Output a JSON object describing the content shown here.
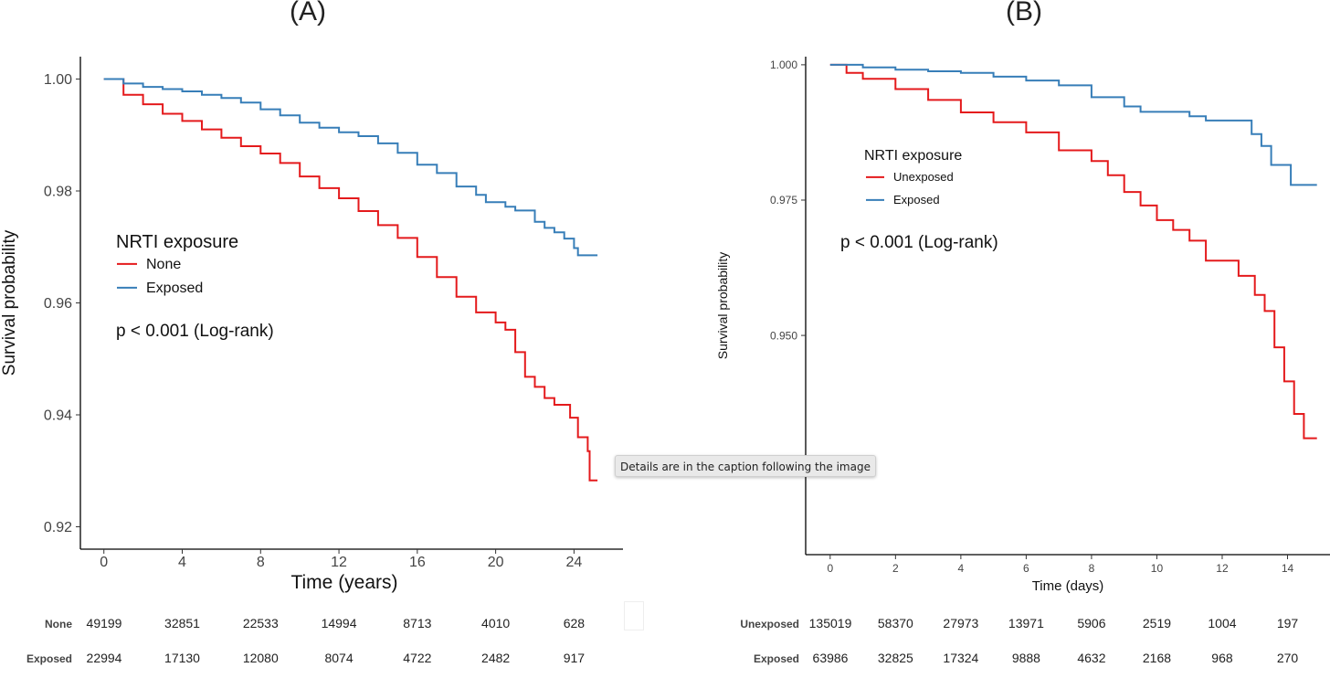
{
  "tooltip": "Details are in the caption following the image",
  "chart_data": [
    {
      "type": "line",
      "title": "(A)",
      "xlabel": "Time (years)",
      "ylabel": "Survival probability",
      "xlim": [
        -1.2,
        26.5
      ],
      "ylim": [
        0.916,
        1.004
      ],
      "xticks": [
        0,
        4,
        8,
        12,
        16,
        20,
        24
      ],
      "yticks": [
        0.92,
        0.94,
        0.96,
        0.98,
        1.0
      ],
      "ytick_labels": [
        "0.92",
        "0.94",
        "0.96",
        "0.98",
        "1.00"
      ],
      "grid": false,
      "legend": {
        "title": "NRTI exposure",
        "position": "left-middle"
      },
      "annotation": "p < 0.001 (Log-rank)",
      "series": [
        {
          "name": "None",
          "color": "#e41a1c",
          "points": [
            [
              0,
              1.0
            ],
            [
              1,
              0.9972
            ],
            [
              2,
              0.9955
            ],
            [
              3,
              0.9938
            ],
            [
              4,
              0.9925
            ],
            [
              5,
              0.991
            ],
            [
              6,
              0.9895
            ],
            [
              7,
              0.988
            ],
            [
              8,
              0.9867
            ],
            [
              9,
              0.985
            ],
            [
              10,
              0.9826
            ],
            [
              11,
              0.9805
            ],
            [
              12,
              0.9787
            ],
            [
              13,
              0.9764
            ],
            [
              14,
              0.9739
            ],
            [
              15,
              0.9716
            ],
            [
              16,
              0.9682
            ],
            [
              17,
              0.9646
            ],
            [
              18,
              0.9611
            ],
            [
              19,
              0.9583
            ],
            [
              20,
              0.9565
            ],
            [
              20.5,
              0.9552
            ],
            [
              21,
              0.9512
            ],
            [
              21.5,
              0.9468
            ],
            [
              22,
              0.945
            ],
            [
              22.5,
              0.943
            ],
            [
              23,
              0.9418
            ],
            [
              23.5,
              0.9418
            ],
            [
              23.8,
              0.9395
            ],
            [
              24.2,
              0.936
            ],
            [
              24.7,
              0.9335
            ],
            [
              24.8,
              0.9283
            ],
            [
              25.2,
              0.9283
            ]
          ]
        },
        {
          "name": "Exposed",
          "color": "#377eb8",
          "points": [
            [
              0,
              1.0
            ],
            [
              1,
              0.9992
            ],
            [
              2,
              0.9986
            ],
            [
              3,
              0.9982
            ],
            [
              4,
              0.9978
            ],
            [
              5,
              0.9972
            ],
            [
              6,
              0.9966
            ],
            [
              7,
              0.9958
            ],
            [
              8,
              0.9946
            ],
            [
              9,
              0.9935
            ],
            [
              10,
              0.9922
            ],
            [
              11,
              0.9913
            ],
            [
              12,
              0.9905
            ],
            [
              13,
              0.9898
            ],
            [
              14,
              0.9885
            ],
            [
              15,
              0.9868
            ],
            [
              16,
              0.9847
            ],
            [
              17,
              0.9832
            ],
            [
              18,
              0.9808
            ],
            [
              19,
              0.9793
            ],
            [
              19.5,
              0.978
            ],
            [
              20,
              0.978
            ],
            [
              20.5,
              0.9772
            ],
            [
              21,
              0.9765
            ],
            [
              22,
              0.9745
            ],
            [
              22.5,
              0.9734
            ],
            [
              23,
              0.9726
            ],
            [
              23.5,
              0.9715
            ],
            [
              24,
              0.9698
            ],
            [
              24.2,
              0.9685
            ],
            [
              25.2,
              0.9685
            ]
          ]
        }
      ],
      "risk_table": {
        "rows": [
          {
            "label": "None",
            "values": [
              "49199",
              "32851",
              "22533",
              "14994",
              "8713",
              "4010",
              "628"
            ]
          },
          {
            "label": "Exposed",
            "values": [
              "22994",
              "17130",
              "12080",
              "8074",
              "4722",
              "2482",
              "917"
            ]
          }
        ]
      }
    },
    {
      "type": "line",
      "title": "(B)",
      "xlabel": "Time (days)",
      "ylabel": "Survival probability",
      "xlim": [
        -0.75,
        15.3
      ],
      "ylim": [
        0.9095,
        1.0015
      ],
      "xticks": [
        0,
        2,
        4,
        6,
        8,
        10,
        12,
        14
      ],
      "yticks": [
        0.95,
        0.975,
        1.0
      ],
      "ytick_labels": [
        "0.950",
        "0.975",
        "1.000"
      ],
      "grid": false,
      "legend": {
        "title": "NRTI exposure",
        "position": "left-upper"
      },
      "annotation": "p < 0.001 (Log-rank)",
      "series": [
        {
          "name": "Unexposed",
          "color": "#e41a1c",
          "points": [
            [
              0,
              1.0
            ],
            [
              0.5,
              0.9985
            ],
            [
              1,
              0.9974
            ],
            [
              2,
              0.9955
            ],
            [
              3,
              0.9935
            ],
            [
              4,
              0.9912
            ],
            [
              5,
              0.9894
            ],
            [
              6,
              0.9875
            ],
            [
              7,
              0.9842
            ],
            [
              8,
              0.9822
            ],
            [
              8.5,
              0.9796
            ],
            [
              9,
              0.9765
            ],
            [
              9.5,
              0.974
            ],
            [
              10,
              0.9713
            ],
            [
              10.5,
              0.9695
            ],
            [
              11,
              0.9675
            ],
            [
              11.5,
              0.9638
            ],
            [
              12,
              0.9638
            ],
            [
              12.5,
              0.961
            ],
            [
              13,
              0.9575
            ],
            [
              13.3,
              0.9545
            ],
            [
              13.6,
              0.9478
            ],
            [
              13.9,
              0.9415
            ],
            [
              14.2,
              0.9355
            ],
            [
              14.5,
              0.931
            ],
            [
              14.9,
              0.931
            ]
          ]
        },
        {
          "name": "Exposed",
          "color": "#377eb8",
          "points": [
            [
              0,
              1.0
            ],
            [
              1,
              0.9995
            ],
            [
              2,
              0.9991
            ],
            [
              3,
              0.9988
            ],
            [
              4,
              0.9985
            ],
            [
              5,
              0.9978
            ],
            [
              6,
              0.9971
            ],
            [
              7,
              0.9962
            ],
            [
              8,
              0.994
            ],
            [
              9,
              0.9923
            ],
            [
              9.5,
              0.9913
            ],
            [
              10,
              0.9913
            ],
            [
              11,
              0.9905
            ],
            [
              11.5,
              0.9897
            ],
            [
              12,
              0.9897
            ],
            [
              12.7,
              0.9897
            ],
            [
              12.9,
              0.9872
            ],
            [
              13.2,
              0.985
            ],
            [
              13.5,
              0.9815
            ],
            [
              14,
              0.9815
            ],
            [
              14.1,
              0.9778
            ],
            [
              14.9,
              0.9778
            ]
          ]
        }
      ],
      "risk_table": {
        "rows": [
          {
            "label": "Unexposed",
            "values": [
              "135019",
              "58370",
              "27973",
              "13971",
              "5906",
              "2519",
              "1004",
              "197"
            ]
          },
          {
            "label": "Exposed",
            "values": [
              "63986",
              "32825",
              "17324",
              "9888",
              "4632",
              "2168",
              "968",
              "270"
            ]
          }
        ]
      }
    }
  ]
}
